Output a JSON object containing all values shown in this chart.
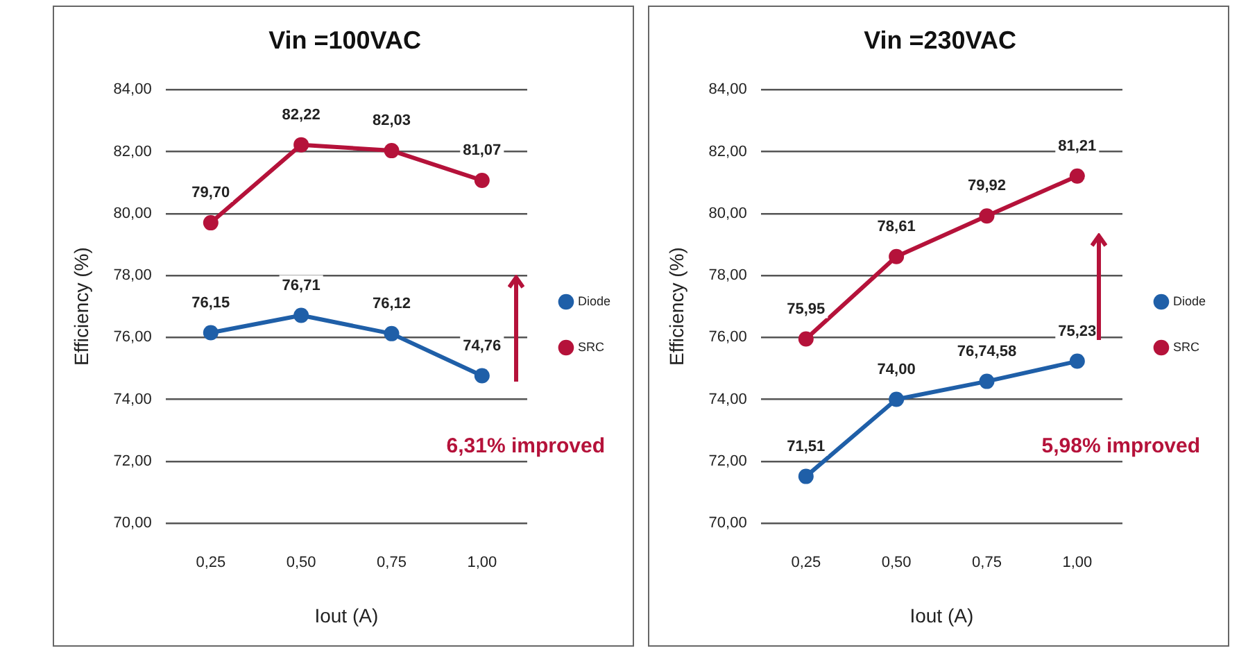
{
  "chart_data": [
    {
      "type": "line",
      "title": "Vin =100VAC",
      "xlabel": "Iout (A)",
      "ylabel": "Efficiency (%)",
      "categories": [
        "0,25",
        "0,50",
        "0,75",
        "1,00"
      ],
      "series": [
        {
          "name": "Diode",
          "color": "#1f5fa8",
          "values": [
            76.15,
            76.71,
            76.12,
            74.76
          ],
          "value_labels": [
            "76,15",
            "76,71",
            "76,12",
            "74,76"
          ]
        },
        {
          "name": "SRC",
          "color": "#b5123a",
          "values": [
            79.7,
            82.22,
            82.03,
            81.07
          ],
          "value_labels": [
            "79,70",
            "82,22",
            "82,03",
            "81,07"
          ]
        }
      ],
      "ylim": [
        70,
        84
      ],
      "yticks": [
        {
          "value": 70,
          "label": "70,00"
        },
        {
          "value": 72,
          "label": "72,00"
        },
        {
          "value": 74,
          "label": "74,00"
        },
        {
          "value": 76,
          "label": "76,00"
        },
        {
          "value": 78,
          "label": "78,00"
        },
        {
          "value": 80,
          "label": "80,00"
        },
        {
          "value": 82,
          "label": "82,00"
        },
        {
          "value": 84,
          "label": "84,00"
        }
      ],
      "grid": "y",
      "legend": "right",
      "marker": "circle",
      "line_style": "solid",
      "annotations": [
        "6,31% improved"
      ]
    },
    {
      "type": "line",
      "title": "Vin =230VAC",
      "xlabel": "Iout (A)",
      "ylabel": "Efficiency (%)",
      "categories": [
        "0,25",
        "0,50",
        "0,75",
        "1,00"
      ],
      "series": [
        {
          "name": "Diode",
          "color": "#1f5fa8",
          "values": [
            71.51,
            74.0,
            74.58,
            75.23
          ],
          "value_labels": [
            "71,51",
            "74,00",
            "76,74,58",
            "75,23"
          ]
        },
        {
          "name": "SRC",
          "color": "#b5123a",
          "values": [
            75.95,
            78.61,
            79.92,
            81.21
          ],
          "value_labels": [
            "75,95",
            "78,61",
            "79,92",
            "81,21"
          ]
        }
      ],
      "ylim": [
        70,
        84
      ],
      "yticks": [
        {
          "value": 70,
          "label": "70,00"
        },
        {
          "value": 72,
          "label": "72,00"
        },
        {
          "value": 74,
          "label": "74,00"
        },
        {
          "value": 76,
          "label": "76,00"
        },
        {
          "value": 78,
          "label": "78,00"
        },
        {
          "value": 80,
          "label": "80,00"
        },
        {
          "value": 82,
          "label": "82,00"
        },
        {
          "value": 84,
          "label": "84,00"
        }
      ],
      "grid": "y",
      "legend": "right",
      "marker": "circle",
      "line_style": "solid",
      "annotations": [
        "5,98% improved"
      ]
    }
  ]
}
